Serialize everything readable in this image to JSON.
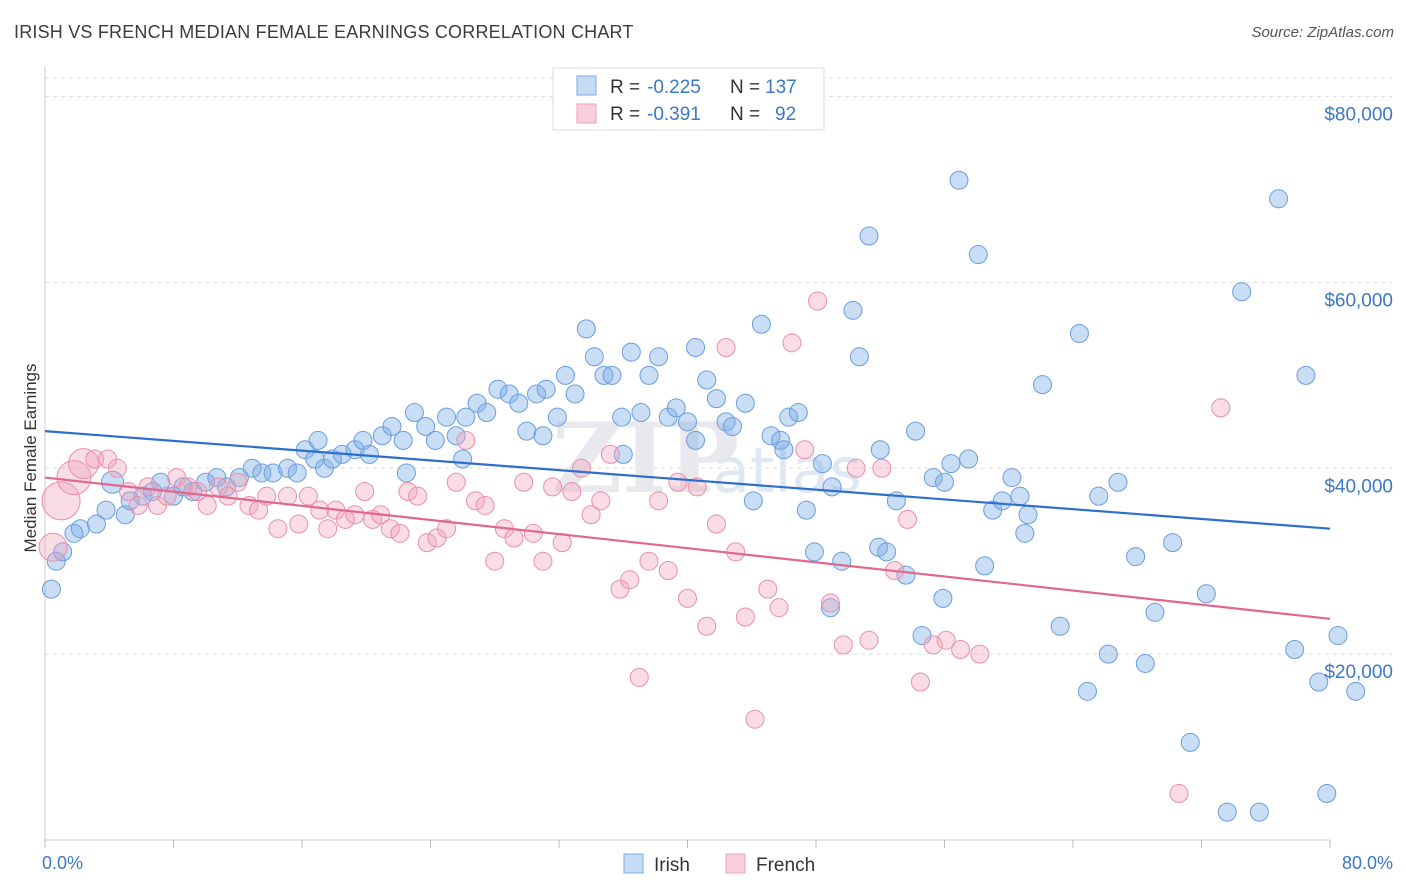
{
  "title": "IRISH VS FRENCH MEDIAN FEMALE EARNINGS CORRELATION CHART",
  "source": "Source: ZipAtlas.com",
  "watermark": {
    "zip": "ZIP",
    "atlas": "atlas"
  },
  "legend": {
    "rows": [
      {
        "r_label": "R =",
        "r_value": "-0.225",
        "n_label": "N =",
        "n_value": "137"
      },
      {
        "r_label": "R =",
        "r_value": "-0.391",
        "n_label": "N =",
        "n_value": "92"
      }
    ]
  },
  "chart_data": {
    "type": "scatter",
    "title": "IRISH VS FRENCH MEDIAN FEMALE EARNINGS CORRELATION CHART",
    "xlabel": "",
    "ylabel": "Median Female Earnings",
    "xlim": [
      0,
      80
    ],
    "ylim": [
      0,
      82000
    ],
    "x_tick_labels": [
      "0.0%",
      "80.0%"
    ],
    "y_tick_labels": [
      "$20,000",
      "$40,000",
      "$60,000",
      "$80,000"
    ],
    "y_ticks": [
      20000,
      40000,
      60000,
      80000
    ],
    "legend_position": "bottom-center",
    "series": [
      {
        "name": "Irish",
        "color": "#7eaee8",
        "trend": {
          "x": [
            0,
            80
          ],
          "y": [
            44000,
            33500
          ]
        },
        "points": [
          [
            0.4,
            27000
          ],
          [
            0.7,
            30000
          ],
          [
            1.1,
            31000
          ],
          [
            1.8,
            33000
          ],
          [
            2.2,
            33500
          ],
          [
            3.2,
            34000
          ],
          [
            3.8,
            35500
          ],
          [
            4.2,
            38500
          ],
          [
            5.0,
            35000
          ],
          [
            5.3,
            36500
          ],
          [
            6.1,
            37000
          ],
          [
            6.7,
            37500
          ],
          [
            7.2,
            38500
          ],
          [
            8.0,
            37000
          ],
          [
            8.6,
            38000
          ],
          [
            9.2,
            37500
          ],
          [
            10.0,
            38500
          ],
          [
            10.7,
            39000
          ],
          [
            11.3,
            38000
          ],
          [
            12.1,
            39000
          ],
          [
            12.9,
            40000
          ],
          [
            13.5,
            39500
          ],
          [
            14.2,
            39500
          ],
          [
            15.1,
            40000
          ],
          [
            15.7,
            39500
          ],
          [
            16.2,
            42000
          ],
          [
            16.8,
            41000
          ],
          [
            17.4,
            40000
          ],
          [
            17.9,
            41000
          ],
          [
            18.5,
            41500
          ],
          [
            19.3,
            42000
          ],
          [
            19.8,
            43000
          ],
          [
            20.2,
            41500
          ],
          [
            21.0,
            43500
          ],
          [
            21.6,
            44500
          ],
          [
            22.3,
            43000
          ],
          [
            23.0,
            46000
          ],
          [
            23.7,
            44500
          ],
          [
            24.3,
            43000
          ],
          [
            25.0,
            45500
          ],
          [
            25.6,
            43500
          ],
          [
            26.2,
            45500
          ],
          [
            26.9,
            47000
          ],
          [
            27.5,
            46000
          ],
          [
            28.2,
            48500
          ],
          [
            28.9,
            48000
          ],
          [
            29.5,
            47000
          ],
          [
            30.0,
            44000
          ],
          [
            30.6,
            48000
          ],
          [
            31.2,
            48500
          ],
          [
            31.9,
            45500
          ],
          [
            32.4,
            50000
          ],
          [
            33.0,
            48000
          ],
          [
            33.7,
            55000
          ],
          [
            34.2,
            52000
          ],
          [
            34.8,
            50000
          ],
          [
            35.3,
            50000
          ],
          [
            35.9,
            45500
          ],
          [
            36.5,
            52500
          ],
          [
            37.1,
            46000
          ],
          [
            37.6,
            50000
          ],
          [
            38.2,
            52000
          ],
          [
            38.8,
            45500
          ],
          [
            39.3,
            46500
          ],
          [
            40.0,
            45000
          ],
          [
            40.5,
            53000
          ],
          [
            41.2,
            49500
          ],
          [
            41.8,
            47500
          ],
          [
            42.4,
            45000
          ],
          [
            42.8,
            44500
          ],
          [
            43.6,
            47000
          ],
          [
            44.1,
            36500
          ],
          [
            44.6,
            55500
          ],
          [
            45.2,
            43500
          ],
          [
            45.8,
            43000
          ],
          [
            46.3,
            45500
          ],
          [
            46.9,
            46000
          ],
          [
            47.4,
            35500
          ],
          [
            47.9,
            31000
          ],
          [
            48.4,
            40500
          ],
          [
            48.9,
            25000
          ],
          [
            49.6,
            30000
          ],
          [
            50.3,
            57000
          ],
          [
            50.7,
            52000
          ],
          [
            51.3,
            65000
          ],
          [
            51.9,
            31500
          ],
          [
            52.4,
            31000
          ],
          [
            53.0,
            36500
          ],
          [
            53.6,
            28500
          ],
          [
            54.2,
            44000
          ],
          [
            54.6,
            22000
          ],
          [
            55.3,
            39000
          ],
          [
            55.9,
            26000
          ],
          [
            56.4,
            40500
          ],
          [
            56.9,
            71000
          ],
          [
            57.5,
            41000
          ],
          [
            58.1,
            63000
          ],
          [
            58.5,
            29500
          ],
          [
            59.0,
            35500
          ],
          [
            59.6,
            36500
          ],
          [
            60.2,
            39000
          ],
          [
            60.7,
            37000
          ],
          [
            61.2,
            35000
          ],
          [
            62.1,
            49000
          ],
          [
            63.2,
            23000
          ],
          [
            64.4,
            54500
          ],
          [
            64.9,
            16000
          ],
          [
            65.6,
            37000
          ],
          [
            66.2,
            20000
          ],
          [
            66.8,
            38500
          ],
          [
            67.9,
            30500
          ],
          [
            68.5,
            19000
          ],
          [
            69.1,
            24500
          ],
          [
            70.2,
            32000
          ],
          [
            71.3,
            10500
          ],
          [
            72.3,
            26500
          ],
          [
            73.6,
            3000
          ],
          [
            74.5,
            59000
          ],
          [
            75.6,
            3000
          ],
          [
            76.8,
            69000
          ],
          [
            77.8,
            20500
          ],
          [
            78.5,
            50000
          ],
          [
            79.3,
            17000
          ],
          [
            79.8,
            5000
          ],
          [
            80.5,
            22000
          ],
          [
            81.6,
            16000
          ],
          [
            17.0,
            43000
          ],
          [
            22.5,
            39500
          ],
          [
            26.0,
            41000
          ],
          [
            31.0,
            43500
          ],
          [
            36.0,
            41500
          ],
          [
            40.5,
            43000
          ],
          [
            46.0,
            42000
          ],
          [
            49.0,
            38000
          ],
          [
            52.0,
            42000
          ],
          [
            56.0,
            38500
          ],
          [
            61.0,
            33000
          ]
        ]
      },
      {
        "name": "French",
        "color": "#f0a2bb",
        "trend": {
          "x": [
            0,
            80
          ],
          "y": [
            39000,
            23800
          ]
        },
        "points": [
          [
            0.5,
            31500
          ],
          [
            1.0,
            36500
          ],
          [
            1.8,
            39000
          ],
          [
            2.4,
            40500
          ],
          [
            3.1,
            41000
          ],
          [
            3.9,
            41000
          ],
          [
            4.5,
            40000
          ],
          [
            5.2,
            37500
          ],
          [
            5.8,
            36000
          ],
          [
            6.4,
            38000
          ],
          [
            7.0,
            36000
          ],
          [
            7.6,
            37000
          ],
          [
            8.2,
            39000
          ],
          [
            8.9,
            38000
          ],
          [
            9.5,
            37500
          ],
          [
            10.1,
            36000
          ],
          [
            10.8,
            38000
          ],
          [
            11.4,
            37000
          ],
          [
            12.0,
            38500
          ],
          [
            12.7,
            36000
          ],
          [
            13.3,
            35500
          ],
          [
            13.8,
            37000
          ],
          [
            14.5,
            33500
          ],
          [
            15.1,
            37000
          ],
          [
            15.8,
            34000
          ],
          [
            16.4,
            37000
          ],
          [
            17.1,
            35500
          ],
          [
            17.6,
            33500
          ],
          [
            18.1,
            35500
          ],
          [
            18.7,
            34500
          ],
          [
            19.3,
            35000
          ],
          [
            19.9,
            37500
          ],
          [
            20.4,
            34500
          ],
          [
            20.9,
            35000
          ],
          [
            21.5,
            33500
          ],
          [
            22.1,
            33000
          ],
          [
            22.6,
            37500
          ],
          [
            23.2,
            37000
          ],
          [
            23.8,
            32000
          ],
          [
            24.4,
            32500
          ],
          [
            25.0,
            33500
          ],
          [
            25.6,
            38500
          ],
          [
            26.2,
            43000
          ],
          [
            26.8,
            36500
          ],
          [
            27.4,
            36000
          ],
          [
            28.0,
            30000
          ],
          [
            28.6,
            33500
          ],
          [
            29.2,
            32500
          ],
          [
            29.8,
            38500
          ],
          [
            30.4,
            33000
          ],
          [
            31.0,
            30000
          ],
          [
            31.6,
            38000
          ],
          [
            32.2,
            32000
          ],
          [
            32.8,
            37500
          ],
          [
            33.4,
            40000
          ],
          [
            34.0,
            35000
          ],
          [
            34.6,
            36500
          ],
          [
            35.2,
            41500
          ],
          [
            35.8,
            27000
          ],
          [
            36.4,
            28000
          ],
          [
            37.0,
            17500
          ],
          [
            37.6,
            30000
          ],
          [
            38.2,
            36500
          ],
          [
            38.8,
            29000
          ],
          [
            39.4,
            38500
          ],
          [
            40.0,
            26000
          ],
          [
            40.6,
            38000
          ],
          [
            41.2,
            23000
          ],
          [
            41.8,
            34000
          ],
          [
            42.4,
            53000
          ],
          [
            43.0,
            31000
          ],
          [
            43.6,
            24000
          ],
          [
            44.2,
            13000
          ],
          [
            45.0,
            27000
          ],
          [
            45.7,
            25000
          ],
          [
            46.5,
            53500
          ],
          [
            47.3,
            42000
          ],
          [
            48.1,
            58000
          ],
          [
            48.9,
            25500
          ],
          [
            49.7,
            21000
          ],
          [
            50.5,
            40000
          ],
          [
            51.3,
            21500
          ],
          [
            52.1,
            40000
          ],
          [
            52.9,
            29000
          ],
          [
            53.7,
            34500
          ],
          [
            54.5,
            17000
          ],
          [
            55.3,
            21000
          ],
          [
            56.1,
            21500
          ],
          [
            57.0,
            20500
          ],
          [
            58.2,
            20000
          ],
          [
            70.6,
            5000
          ],
          [
            73.2,
            46500
          ]
        ]
      }
    ]
  }
}
